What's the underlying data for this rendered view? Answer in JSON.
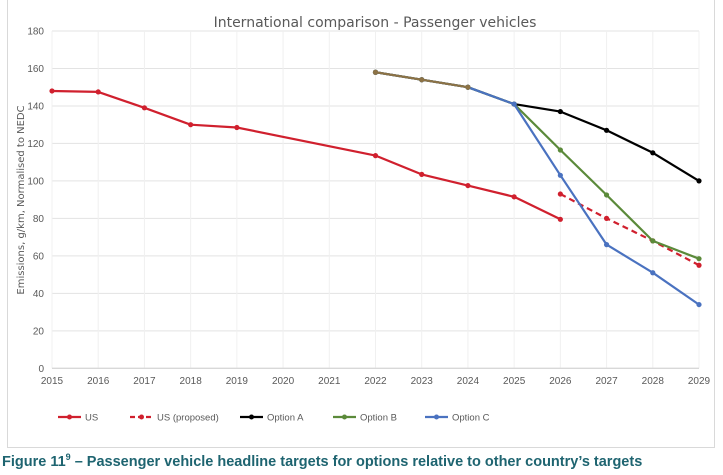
{
  "chart_data": {
    "type": "line",
    "title": "International comparison - Passenger vehicles",
    "xlabel": "",
    "ylabel": "Emissions, g/km, Normalised to NEDC",
    "x": [
      2015,
      2016,
      2017,
      2018,
      2019,
      2020,
      2021,
      2022,
      2023,
      2024,
      2025,
      2026,
      2027,
      2028,
      2029
    ],
    "xlim": [
      2015,
      2029
    ],
    "ylim": [
      0,
      180
    ],
    "yticks": [
      0,
      20,
      40,
      60,
      80,
      100,
      120,
      140,
      160,
      180
    ],
    "grid": true,
    "legend_position": "bottom",
    "overlap_color": "#8c7245",
    "series": [
      {
        "name": "US",
        "color": "#d0202e",
        "dashed": false,
        "points": [
          [
            2015,
            148
          ],
          [
            2016,
            147.5
          ],
          [
            2017,
            139
          ],
          [
            2018,
            130
          ],
          [
            2019,
            128.5
          ],
          [
            2022,
            113.5
          ],
          [
            2023,
            103.5
          ],
          [
            2024,
            97.5
          ],
          [
            2025,
            91.5
          ],
          [
            2026,
            79.5
          ]
        ]
      },
      {
        "name": "US (proposed)",
        "color": "#d0202e",
        "dashed": true,
        "points": [
          [
            2026,
            93
          ],
          [
            2027,
            80
          ],
          [
            2028,
            68
          ],
          [
            2029,
            55
          ]
        ]
      },
      {
        "name": "Option A",
        "color": "#000000",
        "dashed": false,
        "points": [
          [
            2022,
            158
          ],
          [
            2023,
            154
          ],
          [
            2024,
            150
          ],
          [
            2025,
            141
          ],
          [
            2026,
            137
          ],
          [
            2027,
            127
          ],
          [
            2028,
            115
          ],
          [
            2029,
            100
          ]
        ]
      },
      {
        "name": "Option B",
        "color": "#5b8a3a",
        "dashed": false,
        "points": [
          [
            2022,
            158
          ],
          [
            2023,
            154
          ],
          [
            2024,
            150
          ],
          [
            2025,
            141
          ],
          [
            2026,
            116.5
          ],
          [
            2027,
            92.5
          ],
          [
            2028,
            68
          ],
          [
            2029,
            58.5
          ]
        ]
      },
      {
        "name": "Option C",
        "color": "#4a72c0",
        "dashed": false,
        "points": [
          [
            2022,
            158
          ],
          [
            2023,
            154
          ],
          [
            2024,
            150
          ],
          [
            2025,
            141
          ],
          [
            2026,
            103
          ],
          [
            2027,
            66
          ],
          [
            2028,
            51
          ],
          [
            2029,
            34
          ]
        ]
      }
    ]
  },
  "caption": {
    "prefix": "Figure 11",
    "superscript": "9",
    "text": " – Passenger vehicle headline targets for options relative to other country’s targets"
  }
}
